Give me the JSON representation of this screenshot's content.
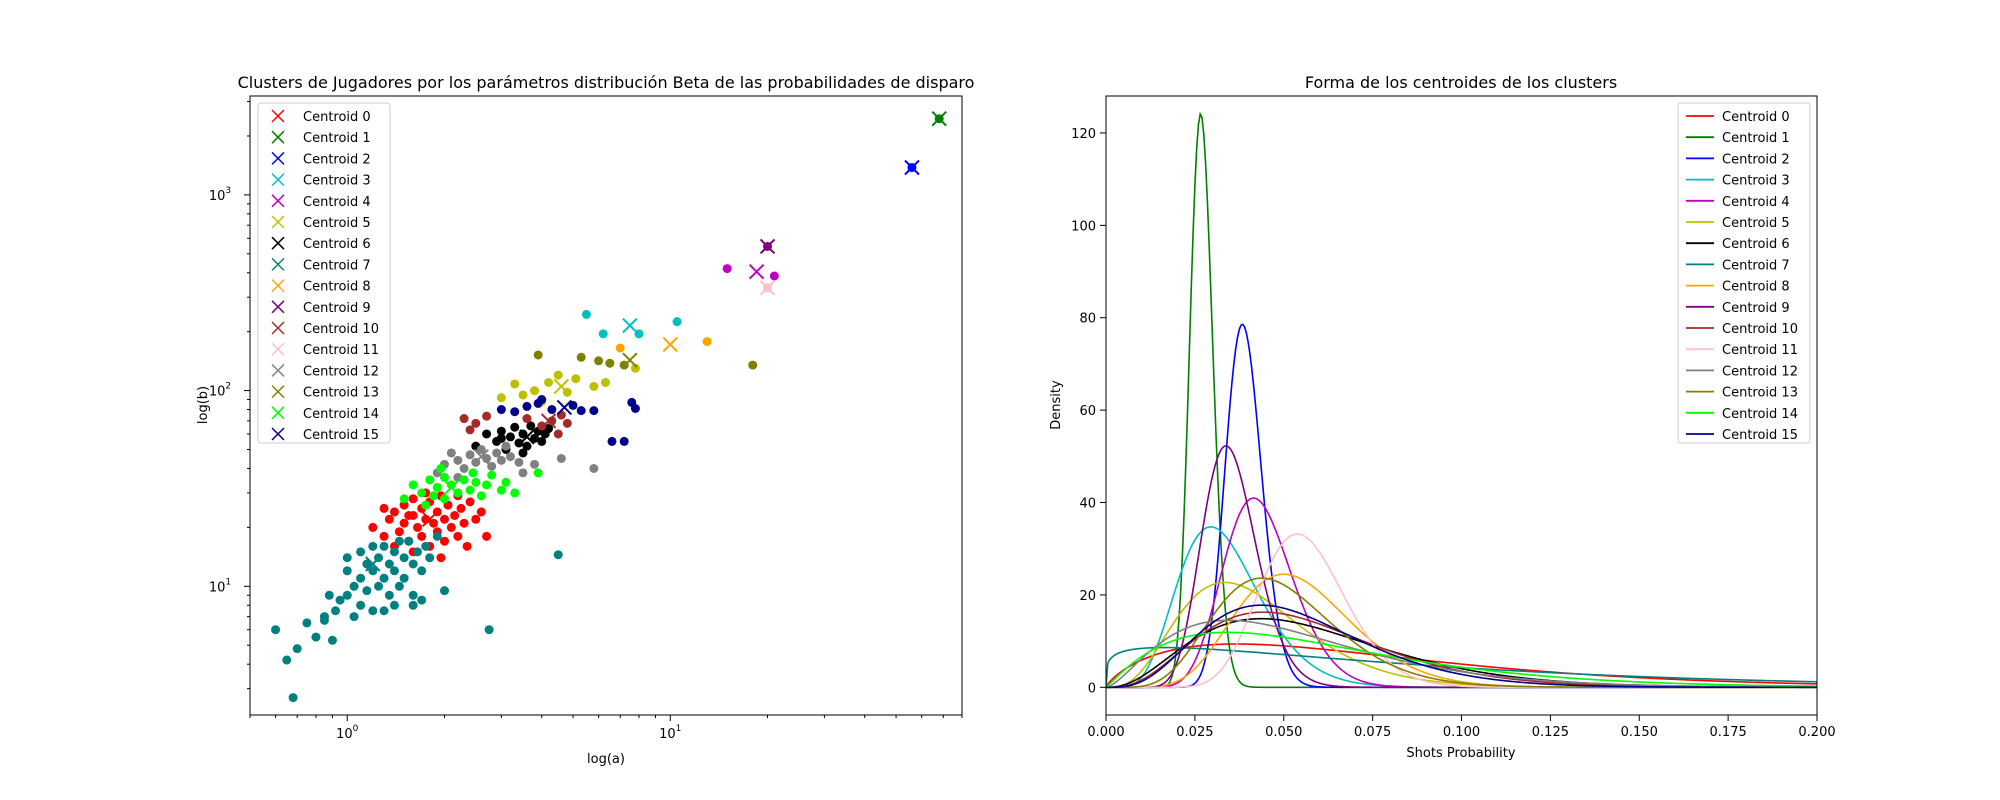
{
  "chart_data": [
    {
      "type": "scatter",
      "title": "Clusters de Jugadores por los parámetros distribución Beta de las probabilidades de disparo",
      "xlabel": "log(a)",
      "ylabel": "log(b)",
      "xscale": "log",
      "yscale": "log",
      "xlim": [
        0.5,
        80
      ],
      "ylim": [
        2.2,
        3200
      ],
      "xticks": [
        {
          "value": 1,
          "label": "10",
          "exp": "0"
        },
        {
          "value": 10,
          "label": "10",
          "exp": "1"
        }
      ],
      "yticks": [
        {
          "value": 10,
          "label": "10",
          "exp": "1"
        },
        {
          "value": 100,
          "label": "10",
          "exp": "2"
        },
        {
          "value": 1000,
          "label": "10",
          "exp": "3"
        }
      ],
      "legend": "upper-left",
      "series": [
        {
          "name": "Centroid 0",
          "color": "#ff0000",
          "centroid": [
            1.8,
            22
          ],
          "points": [
            [
              1.2,
              20
            ],
            [
              1.3,
              18
            ],
            [
              1.35,
              22
            ],
            [
              1.4,
              24
            ],
            [
              1.45,
              19
            ],
            [
              1.5,
              21
            ],
            [
              1.5,
              26
            ],
            [
              1.55,
              17
            ],
            [
              1.6,
              23
            ],
            [
              1.6,
              28
            ],
            [
              1.65,
              20
            ],
            [
              1.7,
              25
            ],
            [
              1.7,
              18
            ],
            [
              1.75,
              22
            ],
            [
              1.8,
              27
            ],
            [
              1.8,
              16
            ],
            [
              1.85,
              21
            ],
            [
              1.9,
              24
            ],
            [
              1.9,
              19
            ],
            [
              1.95,
              29
            ],
            [
              2.0,
              22
            ],
            [
              2.0,
              17
            ],
            [
              2.05,
              26
            ],
            [
              2.1,
              20
            ],
            [
              2.15,
              23
            ],
            [
              2.2,
              18
            ],
            [
              2.25,
              25
            ],
            [
              2.3,
              21
            ],
            [
              2.4,
              27
            ],
            [
              2.5,
              22
            ],
            [
              2.6,
              24
            ],
            [
              2.7,
              18
            ],
            [
              1.4,
              16
            ],
            [
              1.3,
              25
            ],
            [
              1.6,
              15
            ],
            [
              1.75,
              30
            ],
            [
              2.2,
              29
            ],
            [
              2.35,
              16
            ],
            [
              1.55,
              23
            ],
            [
              1.95,
              14
            ]
          ]
        },
        {
          "name": "Centroid 1",
          "color": "#008000",
          "centroid": [
            68,
            2450
          ],
          "points": [
            [
              68,
              2450
            ]
          ]
        },
        {
          "name": "Centroid 2",
          "color": "#0000ff",
          "centroid": [
            56,
            1380
          ],
          "points": [
            [
              56,
              1380
            ]
          ]
        },
        {
          "name": "Centroid 3",
          "color": "#00bfbf",
          "centroid": [
            7.5,
            215
          ],
          "points": [
            [
              5.5,
              245
            ],
            [
              6.2,
              195
            ],
            [
              8,
              195
            ],
            [
              10.5,
              225
            ]
          ]
        },
        {
          "name": "Centroid 4",
          "color": "#bf00bf",
          "centroid": [
            18.5,
            405
          ],
          "points": [
            [
              15,
              420
            ],
            [
              21,
              385
            ]
          ]
        },
        {
          "name": "Centroid 5",
          "color": "#bfbf00",
          "centroid": [
            4.6,
            105
          ],
          "points": [
            [
              3.0,
              92
            ],
            [
              3.5,
              95
            ],
            [
              3.8,
              100
            ],
            [
              4.2,
              110
            ],
            [
              4.5,
              120
            ],
            [
              4.8,
              98
            ],
            [
              5.1,
              115
            ],
            [
              5.8,
              105
            ],
            [
              6.3,
              110
            ],
            [
              7.8,
              130
            ],
            [
              3.3,
              108
            ],
            [
              4.0,
              88
            ]
          ]
        },
        {
          "name": "Centroid 6",
          "color": "#000000",
          "centroid": [
            3.6,
            58
          ],
          "points": [
            [
              2.5,
              52
            ],
            [
              2.7,
              60
            ],
            [
              2.9,
              55
            ],
            [
              3.0,
              62
            ],
            [
              3.1,
              50
            ],
            [
              3.2,
              58
            ],
            [
              3.3,
              65
            ],
            [
              3.4,
              54
            ],
            [
              3.5,
              60
            ],
            [
              3.6,
              52
            ],
            [
              3.7,
              66
            ],
            [
              3.8,
              57
            ],
            [
              3.9,
              62
            ],
            [
              4.0,
              55
            ],
            [
              4.1,
              60
            ],
            [
              3.5,
              48
            ],
            [
              3.0,
              57
            ],
            [
              4.2,
              64
            ]
          ]
        },
        {
          "name": "Centroid 7",
          "color": "#008080",
          "centroid": [
            1.2,
            13
          ],
          "points": [
            [
              0.6,
              6
            ],
            [
              0.65,
              4.2
            ],
            [
              0.68,
              2.7
            ],
            [
              0.7,
              4.8
            ],
            [
              0.75,
              6.5
            ],
            [
              0.8,
              5.5
            ],
            [
              0.85,
              6.7
            ],
            [
              0.88,
              9
            ],
            [
              0.9,
              5.3
            ],
            [
              0.92,
              7.5
            ],
            [
              0.95,
              8.5
            ],
            [
              1.0,
              9
            ],
            [
              1.0,
              12
            ],
            [
              1.05,
              7
            ],
            [
              1.05,
              10
            ],
            [
              1.1,
              11
            ],
            [
              1.1,
              8
            ],
            [
              1.15,
              13
            ],
            [
              1.15,
              9.5
            ],
            [
              1.2,
              12
            ],
            [
              1.2,
              7.5
            ],
            [
              1.25,
              14
            ],
            [
              1.25,
              10
            ],
            [
              1.3,
              11
            ],
            [
              1.3,
              16
            ],
            [
              1.35,
              9
            ],
            [
              1.35,
              13
            ],
            [
              1.4,
              12
            ],
            [
              1.4,
              15
            ],
            [
              1.45,
              10
            ],
            [
              1.5,
              14
            ],
            [
              1.5,
              11
            ],
            [
              1.55,
              17
            ],
            [
              1.6,
              13
            ],
            [
              1.6,
              9
            ],
            [
              1.65,
              15
            ],
            [
              1.7,
              12
            ],
            [
              1.75,
              16
            ],
            [
              1.8,
              14
            ],
            [
              1.9,
              18
            ],
            [
              1.4,
              8
            ],
            [
              1.6,
              8
            ],
            [
              2.0,
              9.5
            ],
            [
              1.7,
              8.5
            ],
            [
              2.75,
              6
            ],
            [
              4.5,
              14.5
            ],
            [
              1.0,
              14
            ],
            [
              1.1,
              15
            ],
            [
              1.3,
              7.5
            ],
            [
              0.85,
              7
            ],
            [
              1.2,
              16
            ],
            [
              1.45,
              17
            ]
          ]
        },
        {
          "name": "Centroid 8",
          "color": "#ffa500",
          "centroid": [
            10,
            172
          ],
          "points": [
            [
              7,
              165
            ],
            [
              13,
              178
            ]
          ]
        },
        {
          "name": "Centroid 9",
          "color": "#800080",
          "centroid": [
            20,
            545
          ],
          "points": [
            [
              20,
              545
            ]
          ]
        },
        {
          "name": "Centroid 10",
          "color": "#a52a2a",
          "centroid": [
            4.2,
            70
          ],
          "points": [
            [
              2.3,
              72
            ],
            [
              2.5,
              68
            ],
            [
              2.7,
              74
            ],
            [
              3.6,
              72
            ],
            [
              4.0,
              66
            ],
            [
              4.3,
              70
            ],
            [
              4.6,
              75
            ],
            [
              4.8,
              68
            ],
            [
              4.5,
              60
            ],
            [
              2.4,
              63
            ]
          ]
        },
        {
          "name": "Centroid 11",
          "color": "#ffc0cb",
          "centroid": [
            20,
            335
          ],
          "points": [
            [
              20,
              335
            ]
          ]
        },
        {
          "name": "Centroid 12",
          "color": "#808080",
          "centroid": [
            2.6,
            46
          ],
          "points": [
            [
              1.9,
              38
            ],
            [
              2.0,
              42
            ],
            [
              2.1,
              48
            ],
            [
              2.2,
              44
            ],
            [
              2.3,
              40
            ],
            [
              2.4,
              47
            ],
            [
              2.5,
              43
            ],
            [
              2.6,
              50
            ],
            [
              2.7,
              45
            ],
            [
              2.8,
              41
            ],
            [
              2.9,
              48
            ],
            [
              3.0,
              44
            ],
            [
              3.1,
              52
            ],
            [
              3.2,
              46
            ],
            [
              3.4,
              43
            ],
            [
              3.8,
              42
            ],
            [
              4.6,
              45
            ],
            [
              5.8,
              40
            ],
            [
              2.2,
              36
            ],
            [
              3.5,
              38
            ]
          ]
        },
        {
          "name": "Centroid 13",
          "color": "#808000",
          "centroid": [
            7.5,
            143
          ],
          "points": [
            [
              3.9,
              152
            ],
            [
              5.3,
              148
            ],
            [
              6.5,
              138
            ],
            [
              7.2,
              135
            ],
            [
              18,
              135
            ],
            [
              6,
              142
            ]
          ]
        },
        {
          "name": "Centroid 14",
          "color": "#00ff00",
          "centroid": [
            2.1,
            32
          ],
          "points": [
            [
              1.5,
              28
            ],
            [
              1.6,
              33
            ],
            [
              1.7,
              30
            ],
            [
              1.8,
              35
            ],
            [
              1.85,
              29
            ],
            [
              1.9,
              32
            ],
            [
              2.0,
              36
            ],
            [
              2.0,
              28
            ],
            [
              2.1,
              33
            ],
            [
              2.2,
              30
            ],
            [
              2.3,
              35
            ],
            [
              2.4,
              31
            ],
            [
              2.5,
              34
            ],
            [
              2.6,
              29
            ],
            [
              2.7,
              33
            ],
            [
              2.8,
              37
            ],
            [
              3.0,
              31
            ],
            [
              3.1,
              34
            ],
            [
              3.3,
              30
            ],
            [
              3.9,
              38
            ],
            [
              1.95,
              40
            ],
            [
              2.45,
              38
            ],
            [
              1.75,
              26
            ]
          ]
        },
        {
          "name": "Centroid 15",
          "color": "#00008b",
          "centroid": [
            4.7,
            82
          ],
          "points": [
            [
              3.0,
              80
            ],
            [
              3.3,
              78
            ],
            [
              3.6,
              83
            ],
            [
              3.9,
              86
            ],
            [
              4.3,
              80
            ],
            [
              5.3,
              79
            ],
            [
              5.8,
              79
            ],
            [
              6.6,
              55
            ],
            [
              7.2,
              55
            ],
            [
              7.6,
              87
            ],
            [
              7.8,
              81
            ],
            [
              4.0,
              90
            ],
            [
              5.0,
              84
            ]
          ]
        }
      ]
    },
    {
      "type": "line",
      "title": "Forma de los centroides de los clusters",
      "xlabel": "Shots Probability",
      "ylabel": "Density",
      "xlim": [
        0,
        0.2
      ],
      "ylim": [
        -6,
        128
      ],
      "xticks": [
        "0.000",
        "0.025",
        "0.050",
        "0.075",
        "0.100",
        "0.125",
        "0.150",
        "0.175",
        "0.200"
      ],
      "yticks": [
        "0",
        "20",
        "40",
        "60",
        "80",
        "100",
        "120"
      ],
      "legend": "upper-right",
      "beta_params": [
        {
          "name": "Centroid 0",
          "color": "#ff0000",
          "a": 1.8,
          "b": 22
        },
        {
          "name": "Centroid 1",
          "color": "#008000",
          "a": 68,
          "b": 2450
        },
        {
          "name": "Centroid 2",
          "color": "#0000ff",
          "a": 56,
          "b": 1380
        },
        {
          "name": "Centroid 3",
          "color": "#00bfbf",
          "a": 7.5,
          "b": 215
        },
        {
          "name": "Centroid 4",
          "color": "#bf00bf",
          "a": 18.5,
          "b": 405
        },
        {
          "name": "Centroid 5",
          "color": "#bfbf00",
          "a": 4.6,
          "b": 105
        },
        {
          "name": "Centroid 6",
          "color": "#000000",
          "a": 3.6,
          "b": 58
        },
        {
          "name": "Centroid 7",
          "color": "#008080",
          "a": 1.2,
          "b": 13
        },
        {
          "name": "Centroid 8",
          "color": "#ffa500",
          "a": 10,
          "b": 172
        },
        {
          "name": "Centroid 9",
          "color": "#800080",
          "a": 20,
          "b": 545
        },
        {
          "name": "Centroid 10",
          "color": "#a52a2a",
          "a": 4.2,
          "b": 70
        },
        {
          "name": "Centroid 11",
          "color": "#ffc0cb",
          "a": 20,
          "b": 335
        },
        {
          "name": "Centroid 12",
          "color": "#808080",
          "a": 2.6,
          "b": 46
        },
        {
          "name": "Centroid 13",
          "color": "#808000",
          "a": 7.5,
          "b": 143
        },
        {
          "name": "Centroid 14",
          "color": "#00ff00",
          "a": 2.1,
          "b": 32
        },
        {
          "name": "Centroid 15",
          "color": "#00008b",
          "a": 4.7,
          "b": 82
        }
      ]
    }
  ]
}
